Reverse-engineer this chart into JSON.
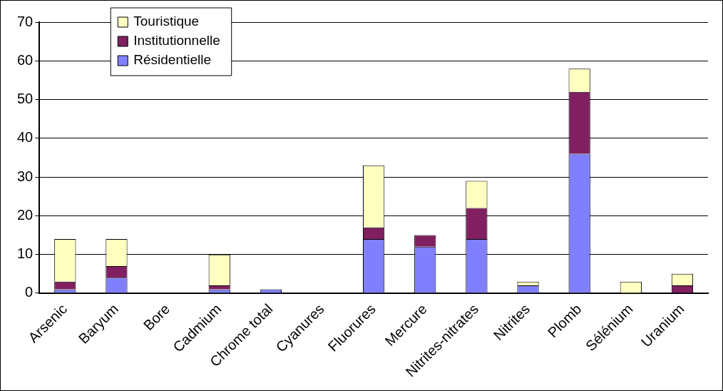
{
  "chart_data": {
    "type": "bar",
    "stacked": true,
    "categories": [
      "Arsenic",
      "Baryum",
      "Bore",
      "Cadmium",
      "Chrome total",
      "Cyanures",
      "Fluorures",
      "Mercure",
      "Nitrites-nitrates",
      "Nitrites",
      "Plomb",
      "Sélénium",
      "Uranium"
    ],
    "series": [
      {
        "name": "Résidentielle",
        "color": "#8080ff",
        "values": [
          1,
          4,
          0,
          1,
          1,
          0,
          14,
          12,
          14,
          2,
          36,
          0,
          0
        ]
      },
      {
        "name": "Institutionnelle",
        "color": "#802060",
        "values": [
          2,
          3,
          0,
          1,
          0,
          0,
          3,
          3,
          8,
          0,
          16,
          0,
          2
        ]
      },
      {
        "name": "Touristique",
        "color": "#ffffc0",
        "values": [
          11,
          7,
          0,
          8,
          0,
          0,
          16,
          0,
          7,
          1,
          6,
          3,
          3
        ]
      }
    ],
    "ylim": [
      0,
      70
    ],
    "yticks": [
      0,
      10,
      20,
      30,
      40,
      50,
      60,
      70
    ],
    "grid": "y",
    "legend": "top left"
  }
}
